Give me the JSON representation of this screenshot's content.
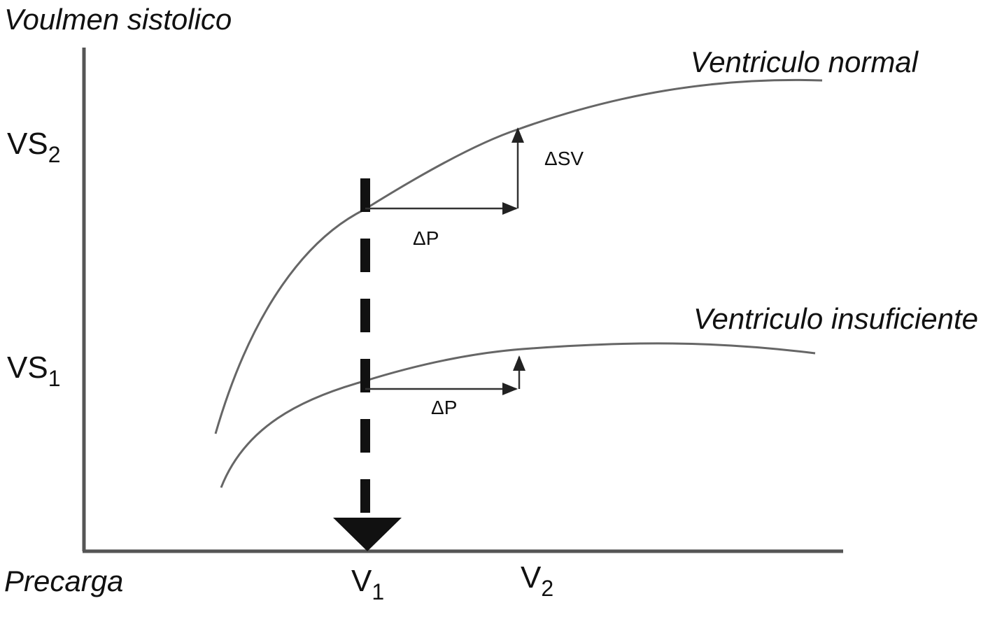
{
  "y_axis": {
    "title": "Voulmen sistolico",
    "ticks": [
      {
        "text": "VS",
        "sub": "2"
      },
      {
        "text": "VS",
        "sub": "1"
      }
    ]
  },
  "x_axis": {
    "title": "Precarga",
    "ticks": [
      {
        "text": "V",
        "sub": "1"
      },
      {
        "text": "V",
        "sub": "2"
      }
    ]
  },
  "curves": [
    {
      "label": "Ventriculo normal"
    },
    {
      "label": "Ventriculo insuficiente"
    }
  ],
  "annotations": {
    "delta_sv": "ΔSV",
    "delta_p_normal": "ΔP",
    "delta_p_insufficient": "ΔP"
  }
}
